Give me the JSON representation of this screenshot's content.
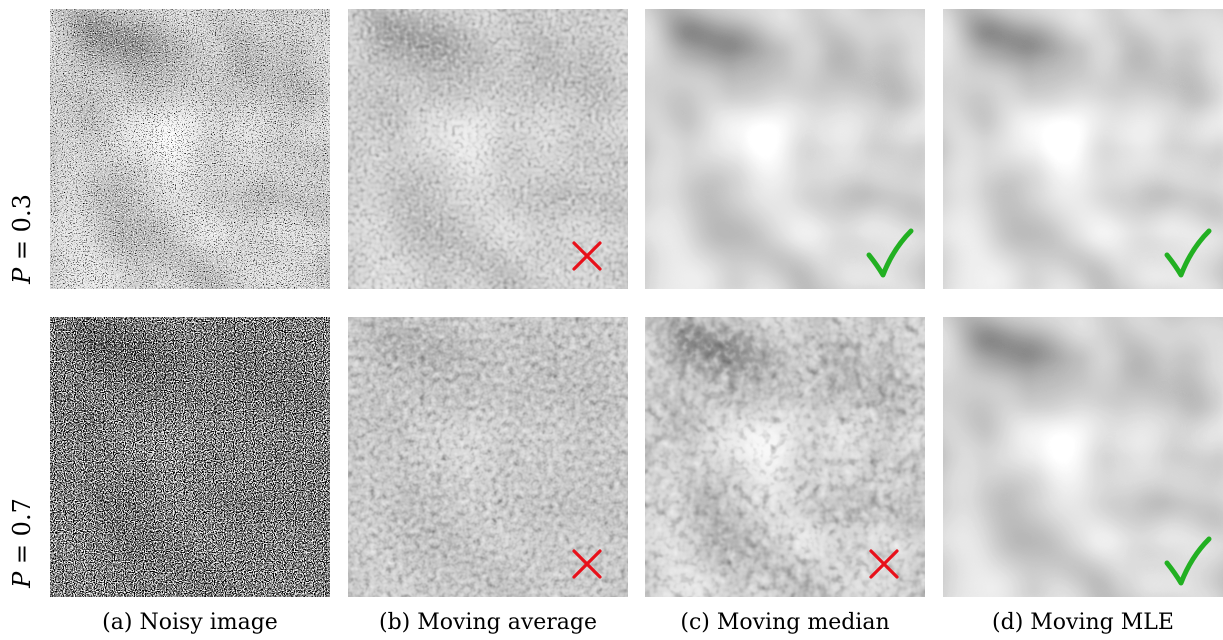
{
  "rows": [
    {
      "label_var": "P",
      "label_op": " = ",
      "label_val": "0.3"
    },
    {
      "label_var": "P",
      "label_op": " = ",
      "label_val": "0.7"
    }
  ],
  "columns": [
    {
      "caption": "(a) Noisy image"
    },
    {
      "caption": "(b) Moving average"
    },
    {
      "caption": "(c) Moving median"
    },
    {
      "caption": "(d) Moving MLE"
    }
  ],
  "results": [
    [
      "none",
      "fail",
      "pass",
      "pass"
    ],
    [
      "none",
      "fail",
      "fail",
      "pass"
    ]
  ],
  "colors": {
    "pass": "#22b022",
    "fail": "#e8101a"
  }
}
